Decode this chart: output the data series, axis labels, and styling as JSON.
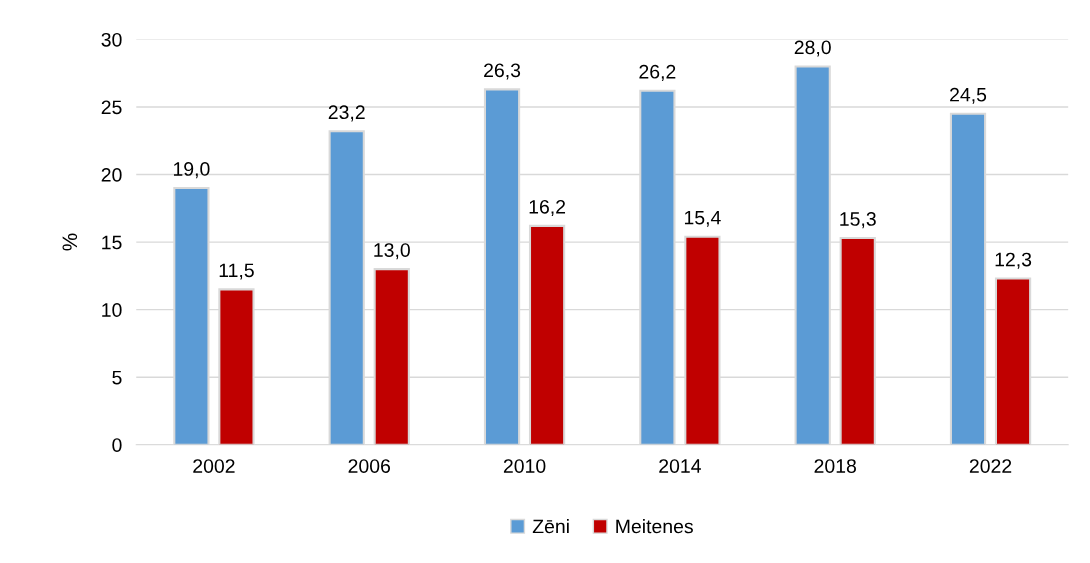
{
  "chart_data": {
    "type": "bar",
    "ylabel": "%",
    "categories": [
      "2002",
      "2006",
      "2010",
      "2014",
      "2018",
      "2022"
    ],
    "series": [
      {
        "name": "Zēni",
        "color": "#5b9bd5",
        "values": [
          19.0,
          23.2,
          26.3,
          26.2,
          28.0,
          24.5
        ],
        "value_labels": [
          "19,0",
          "23,2",
          "26,3",
          "26,2",
          "28,0",
          "24,5"
        ]
      },
      {
        "name": "Meitenes",
        "color": "#c00000",
        "values": [
          11.5,
          13.0,
          16.2,
          15.4,
          15.3,
          12.3
        ],
        "value_labels": [
          "11,5",
          "13,0",
          "16,2",
          "15,4",
          "15,3",
          "12,3"
        ]
      }
    ],
    "ylim": [
      0,
      30
    ],
    "yticks": [
      0,
      5,
      10,
      15,
      20,
      25,
      30
    ],
    "grid": "y",
    "legend": "bottom"
  }
}
